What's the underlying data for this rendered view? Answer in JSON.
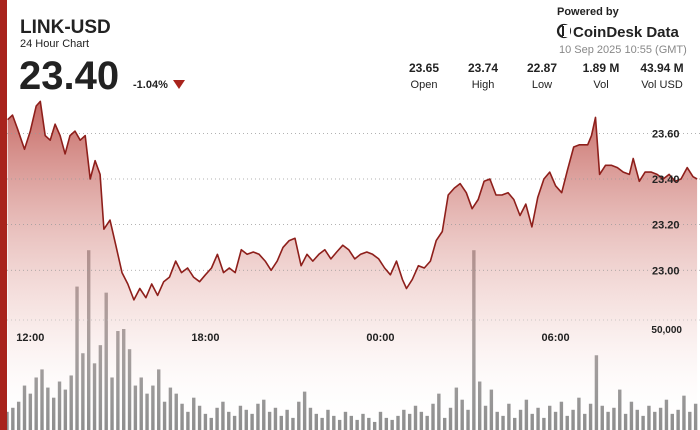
{
  "header": {
    "symbol": "LINK-USD",
    "subtitle": "24 Hour Chart",
    "price": "23.40",
    "change": "-1.04%",
    "powered_by": "Powered by",
    "brand": "CoinDesk Data",
    "timestamp": "10 Sep 2025 10:55 (GMT)",
    "stats": [
      {
        "value": "23.65",
        "label": "Open"
      },
      {
        "value": "23.74",
        "label": "High"
      },
      {
        "value": "22.87",
        "label": "Low"
      },
      {
        "value": "1.89 M",
        "label": "Vol"
      },
      {
        "value": "43.94 M",
        "label": "Vol USD"
      }
    ]
  },
  "chart_data": {
    "type": "line",
    "xlim": [
      -0.8,
      22.95
    ],
    "xticks": [
      {
        "value": 0,
        "label": "12:00"
      },
      {
        "value": 6,
        "label": "18:00"
      },
      {
        "value": 12,
        "label": "00:00"
      },
      {
        "value": 18,
        "label": "06:00"
      }
    ],
    "ylim": [
      22.3,
      23.79
    ],
    "yticks": [
      {
        "value": 23.0,
        "label": "23.00"
      },
      {
        "value": 23.2,
        "label": "23.20"
      },
      {
        "value": 23.4,
        "label": "23.40"
      },
      {
        "value": 23.6,
        "label": "23.60"
      }
    ],
    "y2lim": [
      0,
      100000
    ],
    "y2ticks": [
      {
        "value": 50000,
        "label": "50,000"
      }
    ],
    "grid": true,
    "price": {
      "color": "#8e1f1b",
      "x": [
        -0.78,
        -0.61,
        -0.44,
        -0.2,
        0,
        0.2,
        0.34,
        0.51,
        0.68,
        0.85,
        1.02,
        1.19,
        1.36,
        1.53,
        1.71,
        1.88,
        2.05,
        2.22,
        2.39,
        2.52,
        2.73,
        2.93,
        3.14,
        3.34,
        3.55,
        3.75,
        3.96,
        4.16,
        4.36,
        4.57,
        4.77,
        4.98,
        5.18,
        5.39,
        5.59,
        5.8,
        6.0,
        6.21,
        6.41,
        6.62,
        6.82,
        7.02,
        7.23,
        7.43,
        7.64,
        7.84,
        8.05,
        8.25,
        8.46,
        8.66,
        8.87,
        9.07,
        9.28,
        9.48,
        9.68,
        9.89,
        10.09,
        10.3,
        10.5,
        10.71,
        10.91,
        11.12,
        11.32,
        11.53,
        11.73,
        11.94,
        12.14,
        12.34,
        12.55,
        12.75,
        12.89,
        13.09,
        13.3,
        13.5,
        13.71,
        13.91,
        14.12,
        14.32,
        14.53,
        14.73,
        14.94,
        15.14,
        15.35,
        15.55,
        15.75,
        15.96,
        16.16,
        16.37,
        16.57,
        16.78,
        16.98,
        17.19,
        17.39,
        17.6,
        17.8,
        18.0,
        18.21,
        18.41,
        18.62,
        18.82,
        19.1,
        19.23,
        19.37,
        19.51,
        19.71,
        19.91,
        20.12,
        20.32,
        20.53,
        20.66,
        20.87,
        21.07,
        21.28,
        21.48,
        21.69,
        21.89,
        22.1,
        22.3,
        22.51,
        22.71,
        22.85
      ],
      "values": [
        23.66,
        23.68,
        23.62,
        23.53,
        23.61,
        23.72,
        23.74,
        23.59,
        23.57,
        23.64,
        23.59,
        23.51,
        23.59,
        23.61,
        23.57,
        23.59,
        23.4,
        23.48,
        23.42,
        23.18,
        23.22,
        23.11,
        22.99,
        22.94,
        22.87,
        22.92,
        22.88,
        22.94,
        22.89,
        22.95,
        22.97,
        23.04,
        22.99,
        23.01,
        22.97,
        22.95,
        22.98,
        23.01,
        23.07,
        22.99,
        23.01,
        22.99,
        23.09,
        23.07,
        23.08,
        23.07,
        23.04,
        23.0,
        23.04,
        23.1,
        23.13,
        23.14,
        23.02,
        23.07,
        23.04,
        23.07,
        23.09,
        23.05,
        23.08,
        23.11,
        23.09,
        23.05,
        23.07,
        23.08,
        23.07,
        23.05,
        23.01,
        22.98,
        23.04,
        22.96,
        22.92,
        22.96,
        23.02,
        23.01,
        23.04,
        23.13,
        23.17,
        23.33,
        23.36,
        23.38,
        23.34,
        23.27,
        23.31,
        23.39,
        23.4,
        23.33,
        23.33,
        23.34,
        23.31,
        23.24,
        23.29,
        23.19,
        23.32,
        23.4,
        23.43,
        23.37,
        23.34,
        23.44,
        23.54,
        23.55,
        23.55,
        23.59,
        23.67,
        23.42,
        23.46,
        23.46,
        23.45,
        23.43,
        23.42,
        23.49,
        23.39,
        23.43,
        23.43,
        23.42,
        23.4,
        23.42,
        23.39,
        23.4,
        23.45,
        23.41,
        23.4
      ]
    },
    "volume": {
      "axis": "y2",
      "color": "#7a7a7a",
      "x": [
        -0.8,
        -0.6,
        -0.4,
        -0.2,
        0,
        0.2,
        0.4,
        0.6,
        0.8,
        1,
        1.2,
        1.4,
        1.6,
        1.8,
        2,
        2.2,
        2.4,
        2.6,
        2.8,
        3,
        3.2,
        3.4,
        3.6,
        3.8,
        4,
        4.2,
        4.4,
        4.6,
        4.8,
        5,
        5.2,
        5.4,
        5.6,
        5.8,
        6,
        6.2,
        6.4,
        6.6,
        6.8,
        7,
        7.2,
        7.4,
        7.6,
        7.8,
        8,
        8.2,
        8.4,
        8.6,
        8.8,
        9,
        9.2,
        9.4,
        9.6,
        9.8,
        10,
        10.2,
        10.4,
        10.6,
        10.8,
        11,
        11.2,
        11.4,
        11.6,
        11.8,
        12,
        12.2,
        12.4,
        12.6,
        12.8,
        13,
        13.2,
        13.4,
        13.6,
        13.8,
        14,
        14.2,
        14.4,
        14.6,
        14.8,
        15,
        15.2,
        15.4,
        15.6,
        15.8,
        16,
        16.2,
        16.4,
        16.6,
        16.8,
        17,
        17.2,
        17.4,
        17.6,
        17.8,
        18,
        18.2,
        18.4,
        18.6,
        18.8,
        19,
        19.2,
        19.4,
        19.6,
        19.8,
        20,
        20.2,
        20.4,
        20.6,
        20.8,
        21,
        21.2,
        21.4,
        21.6,
        21.8,
        22,
        22.2,
        22.4,
        22.6,
        22.8
      ],
      "values": [
        9000,
        11000,
        14000,
        22000,
        18000,
        26000,
        30000,
        21000,
        16000,
        24000,
        20000,
        27000,
        71000,
        38000,
        89000,
        33000,
        42000,
        68000,
        26000,
        49000,
        50000,
        40000,
        22000,
        26000,
        18000,
        22000,
        30000,
        14000,
        21000,
        18000,
        13000,
        9000,
        16000,
        12000,
        8000,
        6000,
        11000,
        14000,
        9000,
        7000,
        12000,
        10000,
        8000,
        13000,
        15000,
        9000,
        11000,
        7000,
        10000,
        6000,
        14000,
        19000,
        11000,
        8000,
        6000,
        10000,
        7000,
        5000,
        9000,
        7000,
        5000,
        8000,
        6000,
        4000,
        9000,
        6000,
        5000,
        7000,
        10000,
        8000,
        12000,
        9000,
        7000,
        13000,
        18000,
        6000,
        11000,
        21000,
        15000,
        10000,
        89000,
        24000,
        12000,
        20000,
        9000,
        7000,
        13000,
        6000,
        10000,
        15000,
        8000,
        11000,
        6000,
        12000,
        9000,
        14000,
        7000,
        10000,
        16000,
        8000,
        13000,
        37000,
        12000,
        9000,
        11000,
        20000,
        8000,
        14000,
        10000,
        7000,
        12000,
        9000,
        11000,
        15000,
        8000,
        10000,
        17000,
        9000,
        13000
      ]
    }
  }
}
